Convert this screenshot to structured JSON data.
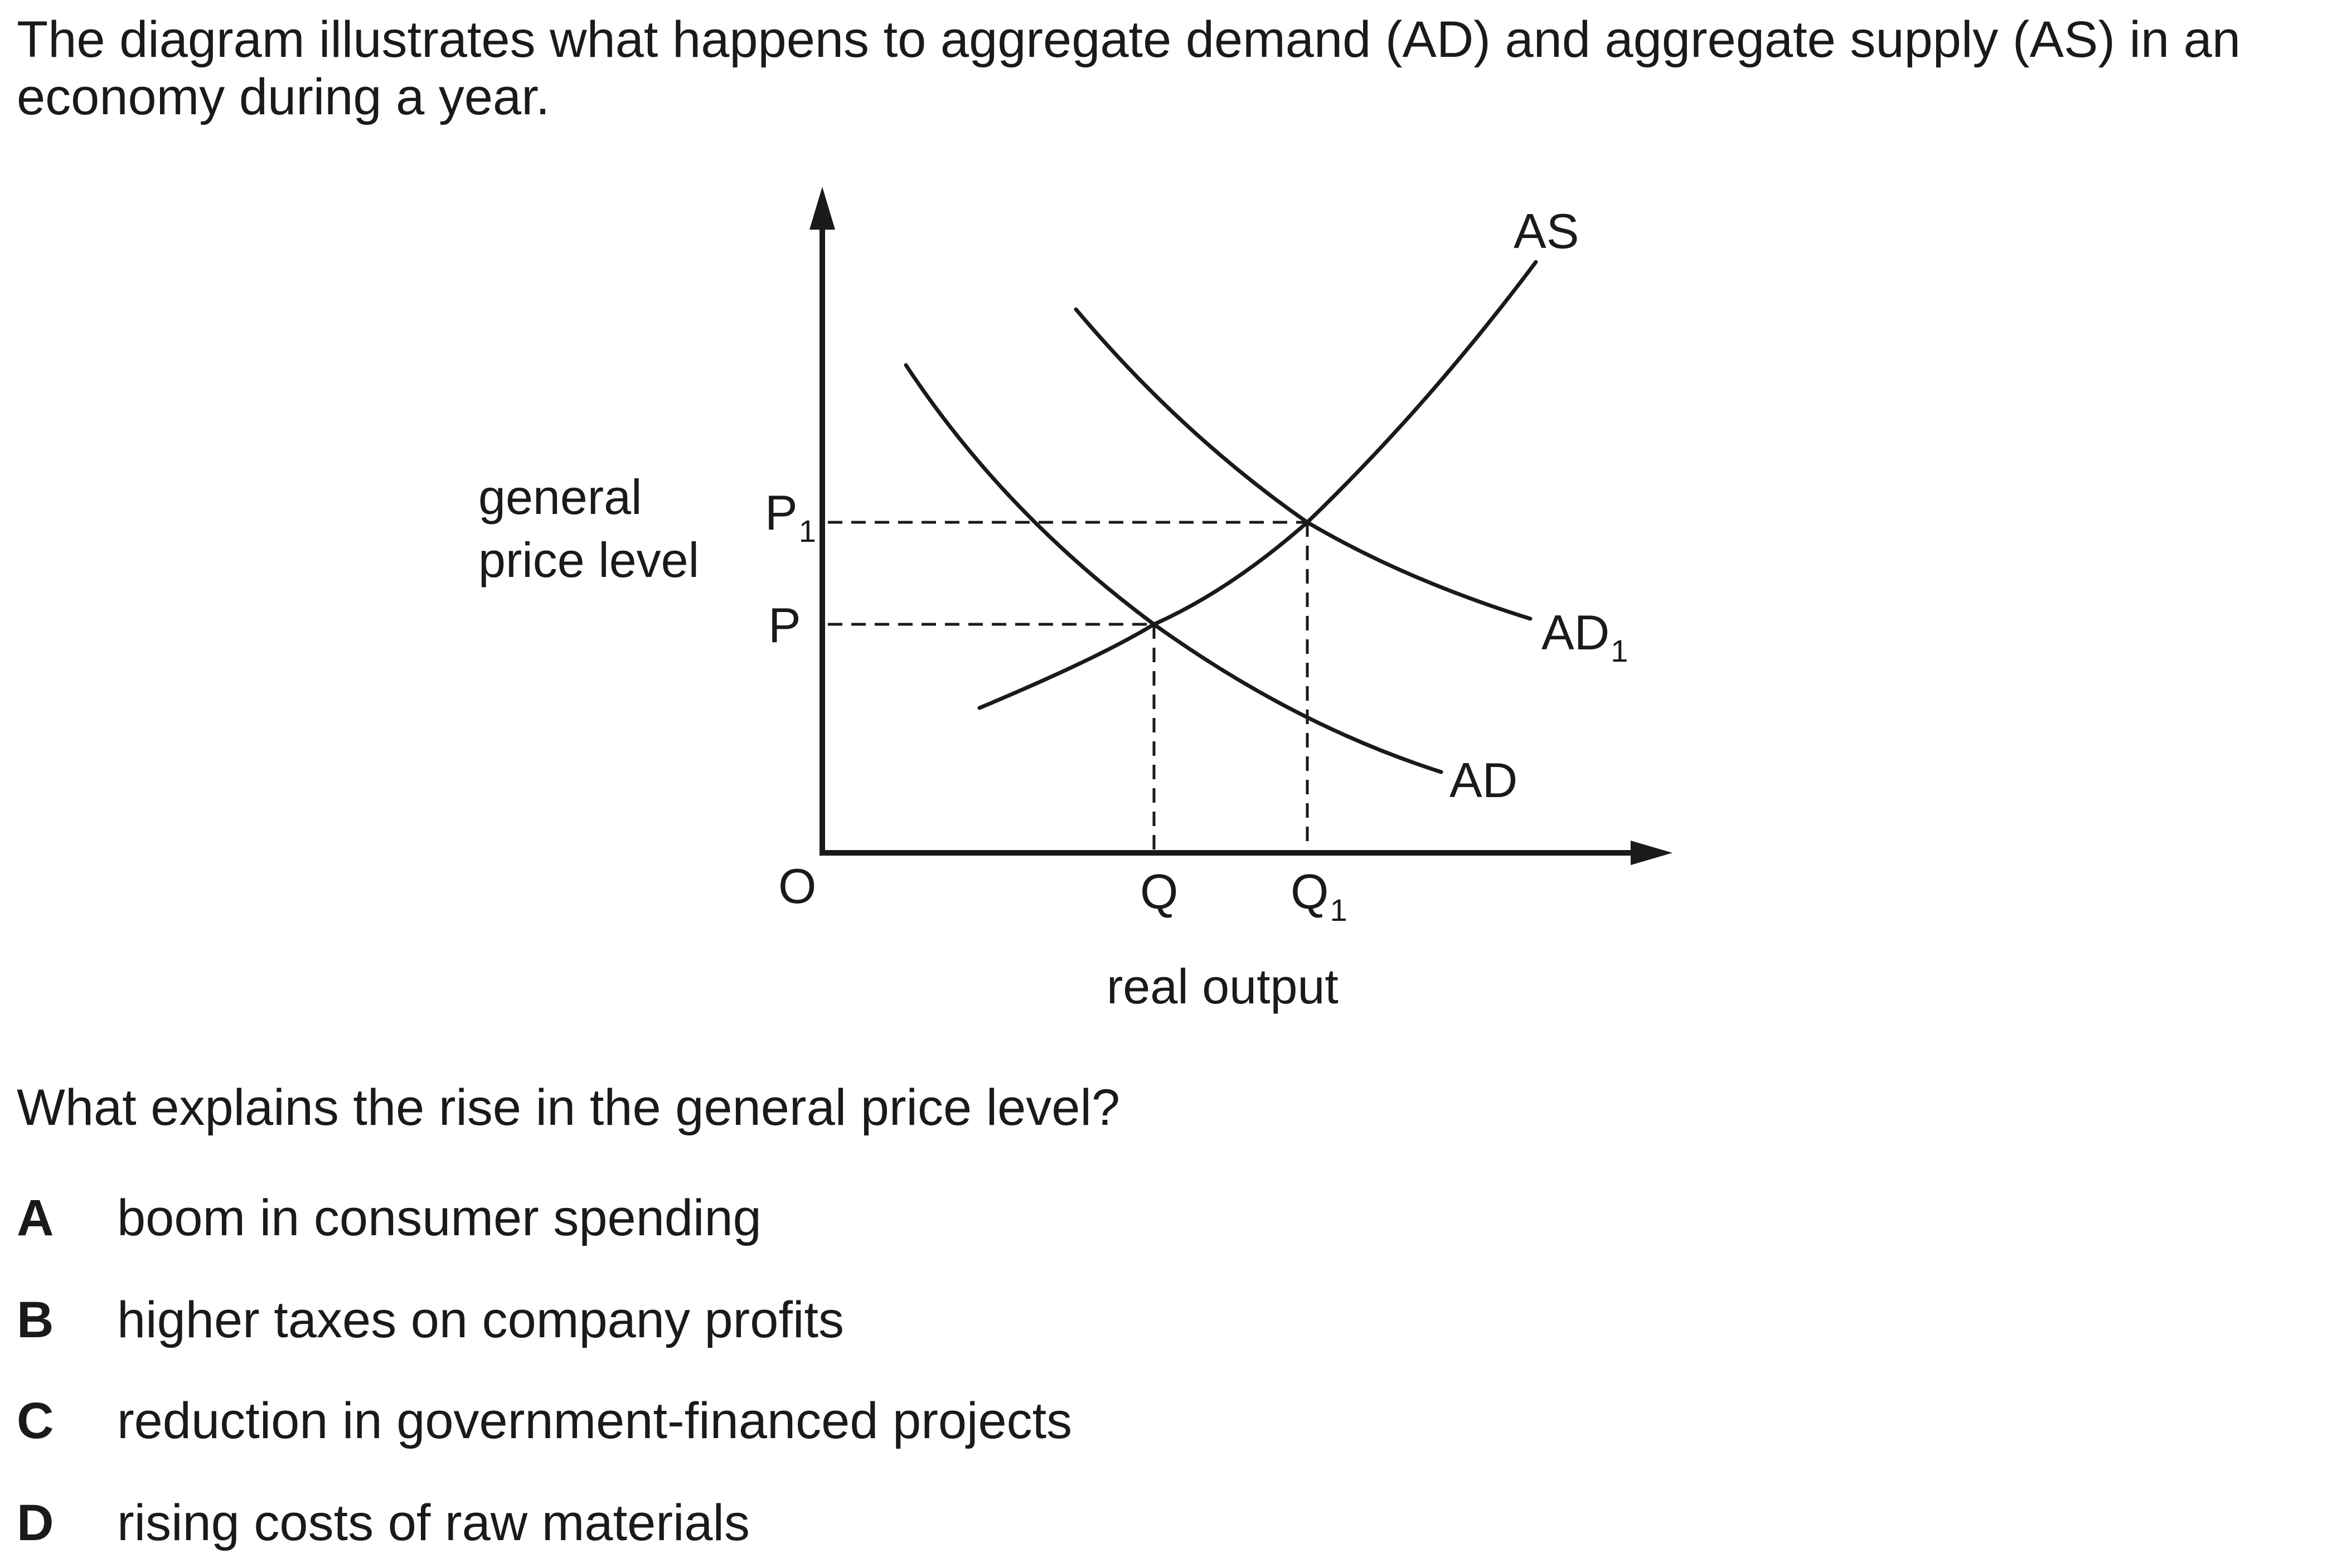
{
  "intro_text": "The diagram illustrates what happens to aggregate demand (AD) and aggregate supply (AS) in an economy during a year.",
  "diagram": {
    "y_axis_label_line1": "general",
    "y_axis_label_line2": "price level",
    "x_axis_label": "real output",
    "origin_label": "O",
    "price_labels": {
      "p1_main": "P",
      "p1_sub": "1",
      "p": "P"
    },
    "quantity_labels": {
      "q": "Q",
      "q1_main": "Q",
      "q1_sub": "1"
    },
    "curve_labels": {
      "as": "AS",
      "ad": "AD",
      "ad1_main": "AD",
      "ad1_sub": "1"
    }
  },
  "question_text": "What explains the rise in the general price level?",
  "options": [
    {
      "letter": "A",
      "text": "boom in consumer spending"
    },
    {
      "letter": "B",
      "text": "higher taxes on company profits"
    },
    {
      "letter": "C",
      "text": "reduction in government-financed projects"
    },
    {
      "letter": "D",
      "text": "rising costs of raw materials"
    }
  ]
}
